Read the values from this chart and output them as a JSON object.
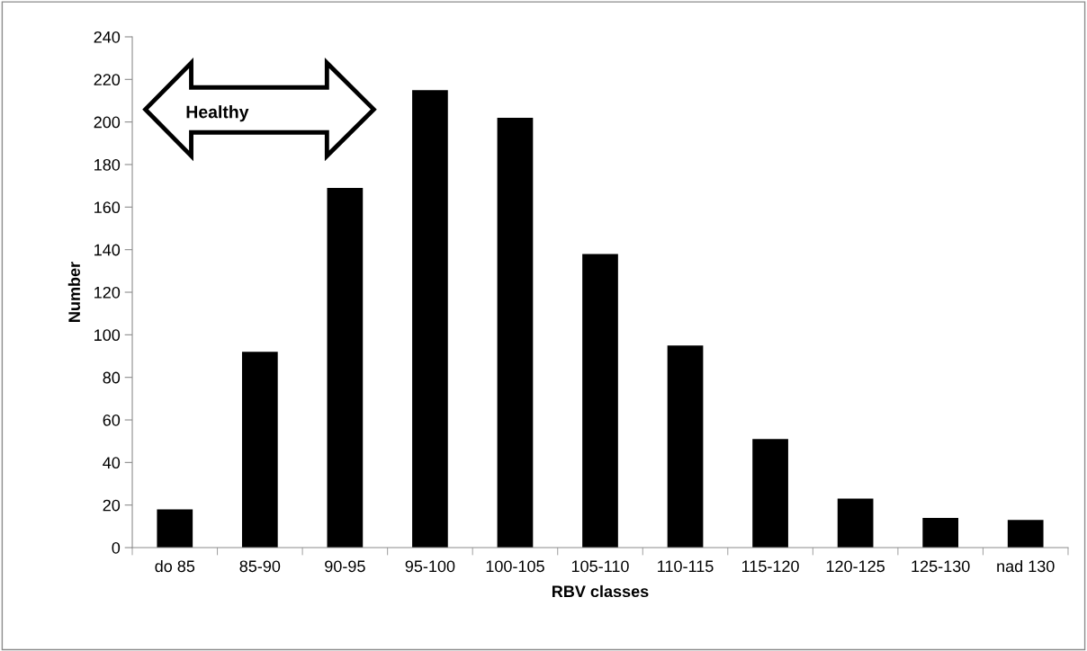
{
  "chart_data": {
    "type": "bar",
    "xlabel": "RBV classes",
    "ylabel": "Number",
    "categories": [
      "do 85",
      "85-90",
      "90-95",
      "95-100",
      "100-105",
      "105-110",
      "110-115",
      "115-120",
      "120-125",
      "125-130",
      "nad 130"
    ],
    "values": [
      18,
      92,
      169,
      215,
      202,
      138,
      95,
      51,
      23,
      14,
      13
    ],
    "color": "#000000",
    "ylim": [
      0,
      240
    ],
    "yticks": [
      0,
      20,
      40,
      60,
      80,
      100,
      120,
      140,
      160,
      180,
      200,
      220,
      240
    ],
    "grid": false,
    "annotations": [
      "Healthy"
    ]
  }
}
